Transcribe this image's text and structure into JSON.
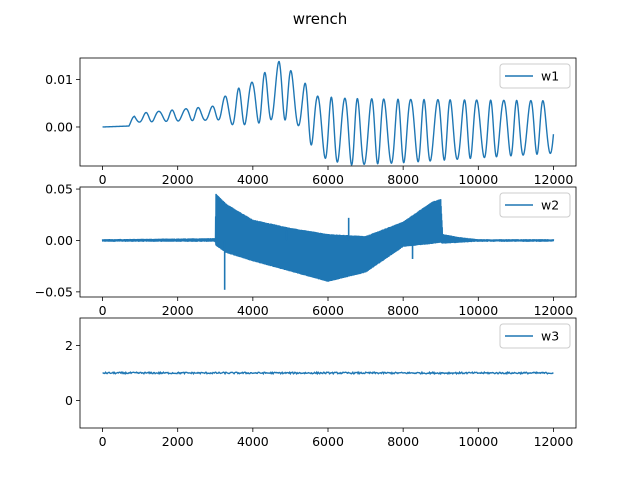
{
  "figure_title": "wrench",
  "chart_data": [
    {
      "type": "line",
      "series": [
        {
          "name": "w1",
          "color": "#1f77b4"
        }
      ],
      "xlim": [
        -600,
        12600
      ],
      "ylim": [
        -0.0082,
        0.0145
      ],
      "x_ticks": [
        0,
        2000,
        4000,
        6000,
        8000,
        10000,
        12000
      ],
      "y_ticks": [
        0.0,
        0.01
      ],
      "y_tick_labels": [
        "0.00",
        "0.01"
      ],
      "legend": "top-right",
      "grid": false,
      "envelope": [
        {
          "x": 0,
          "lo": 0.0,
          "hi": 0.0
        },
        {
          "x": 700,
          "lo": 0.0002,
          "hi": 0.0002
        },
        {
          "x": 850,
          "lo": 0.001,
          "hi": 0.0028
        },
        {
          "x": 3100,
          "lo": 0.0015,
          "hi": 0.0045
        },
        {
          "x": 3300,
          "lo": 0.0005,
          "hi": 0.007
        },
        {
          "x": 4000,
          "lo": 0.0005,
          "hi": 0.0095
        },
        {
          "x": 4700,
          "lo": 0.002,
          "hi": 0.0138
        },
        {
          "x": 5300,
          "lo": 0.0,
          "hi": 0.01
        },
        {
          "x": 5700,
          "lo": -0.006,
          "hi": 0.0065
        },
        {
          "x": 6500,
          "lo": -0.008,
          "hi": 0.006
        },
        {
          "x": 8000,
          "lo": -0.0075,
          "hi": 0.0058
        },
        {
          "x": 12000,
          "lo": -0.0055,
          "hi": 0.0055
        }
      ],
      "cycles": 34
    },
    {
      "type": "line",
      "series": [
        {
          "name": "w2",
          "color": "#1f77b4"
        }
      ],
      "xlim": [
        -600,
        12600
      ],
      "ylim": [
        -0.055,
        0.052
      ],
      "x_ticks": [
        0,
        2000,
        4000,
        6000,
        8000,
        10000,
        12000
      ],
      "y_ticks": [
        -0.05,
        0.0,
        0.05
      ],
      "y_tick_labels": [
        "−0.05",
        "0.00",
        "0.05"
      ],
      "legend": "top-right",
      "grid": false,
      "envelope": [
        {
          "x": 0,
          "lo": -0.001,
          "hi": 0.001
        },
        {
          "x": 3000,
          "lo": -0.001,
          "hi": 0.002
        },
        {
          "x": 3020,
          "lo": -0.005,
          "hi": 0.045
        },
        {
          "x": 3300,
          "lo": -0.012,
          "hi": 0.035
        },
        {
          "x": 4000,
          "lo": -0.02,
          "hi": 0.02
        },
        {
          "x": 5000,
          "lo": -0.03,
          "hi": 0.012
        },
        {
          "x": 6000,
          "lo": -0.04,
          "hi": 0.006
        },
        {
          "x": 7000,
          "lo": -0.031,
          "hi": 0.004
        },
        {
          "x": 8000,
          "lo": -0.006,
          "hi": 0.018
        },
        {
          "x": 8800,
          "lo": -0.003,
          "hi": 0.038
        },
        {
          "x": 9000,
          "lo": -0.002,
          "hi": 0.04
        },
        {
          "x": 9050,
          "lo": -0.003,
          "hi": 0.006
        },
        {
          "x": 9500,
          "lo": -0.002,
          "hi": 0.003
        },
        {
          "x": 10000,
          "lo": -0.001,
          "hi": 0.001
        },
        {
          "x": 12000,
          "lo": -0.001,
          "hi": 0.001
        }
      ],
      "spikes": [
        {
          "x": 3250,
          "y": -0.048
        },
        {
          "x": 4900,
          "y": 0.01
        },
        {
          "x": 6550,
          "y": 0.022
        },
        {
          "x": 8250,
          "y": -0.018
        }
      ]
    },
    {
      "type": "line",
      "series": [
        {
          "name": "w3",
          "color": "#1f77b4"
        }
      ],
      "xlim": [
        -600,
        12600
      ],
      "ylim": [
        -1.0,
        3.0
      ],
      "x_ticks": [
        0,
        2000,
        4000,
        6000,
        8000,
        10000,
        12000
      ],
      "y_ticks": [
        0,
        2
      ],
      "y_tick_labels": [
        "0",
        "2"
      ],
      "legend": "top-right",
      "grid": false,
      "baseline": 1.0,
      "noise": 0.03
    }
  ]
}
